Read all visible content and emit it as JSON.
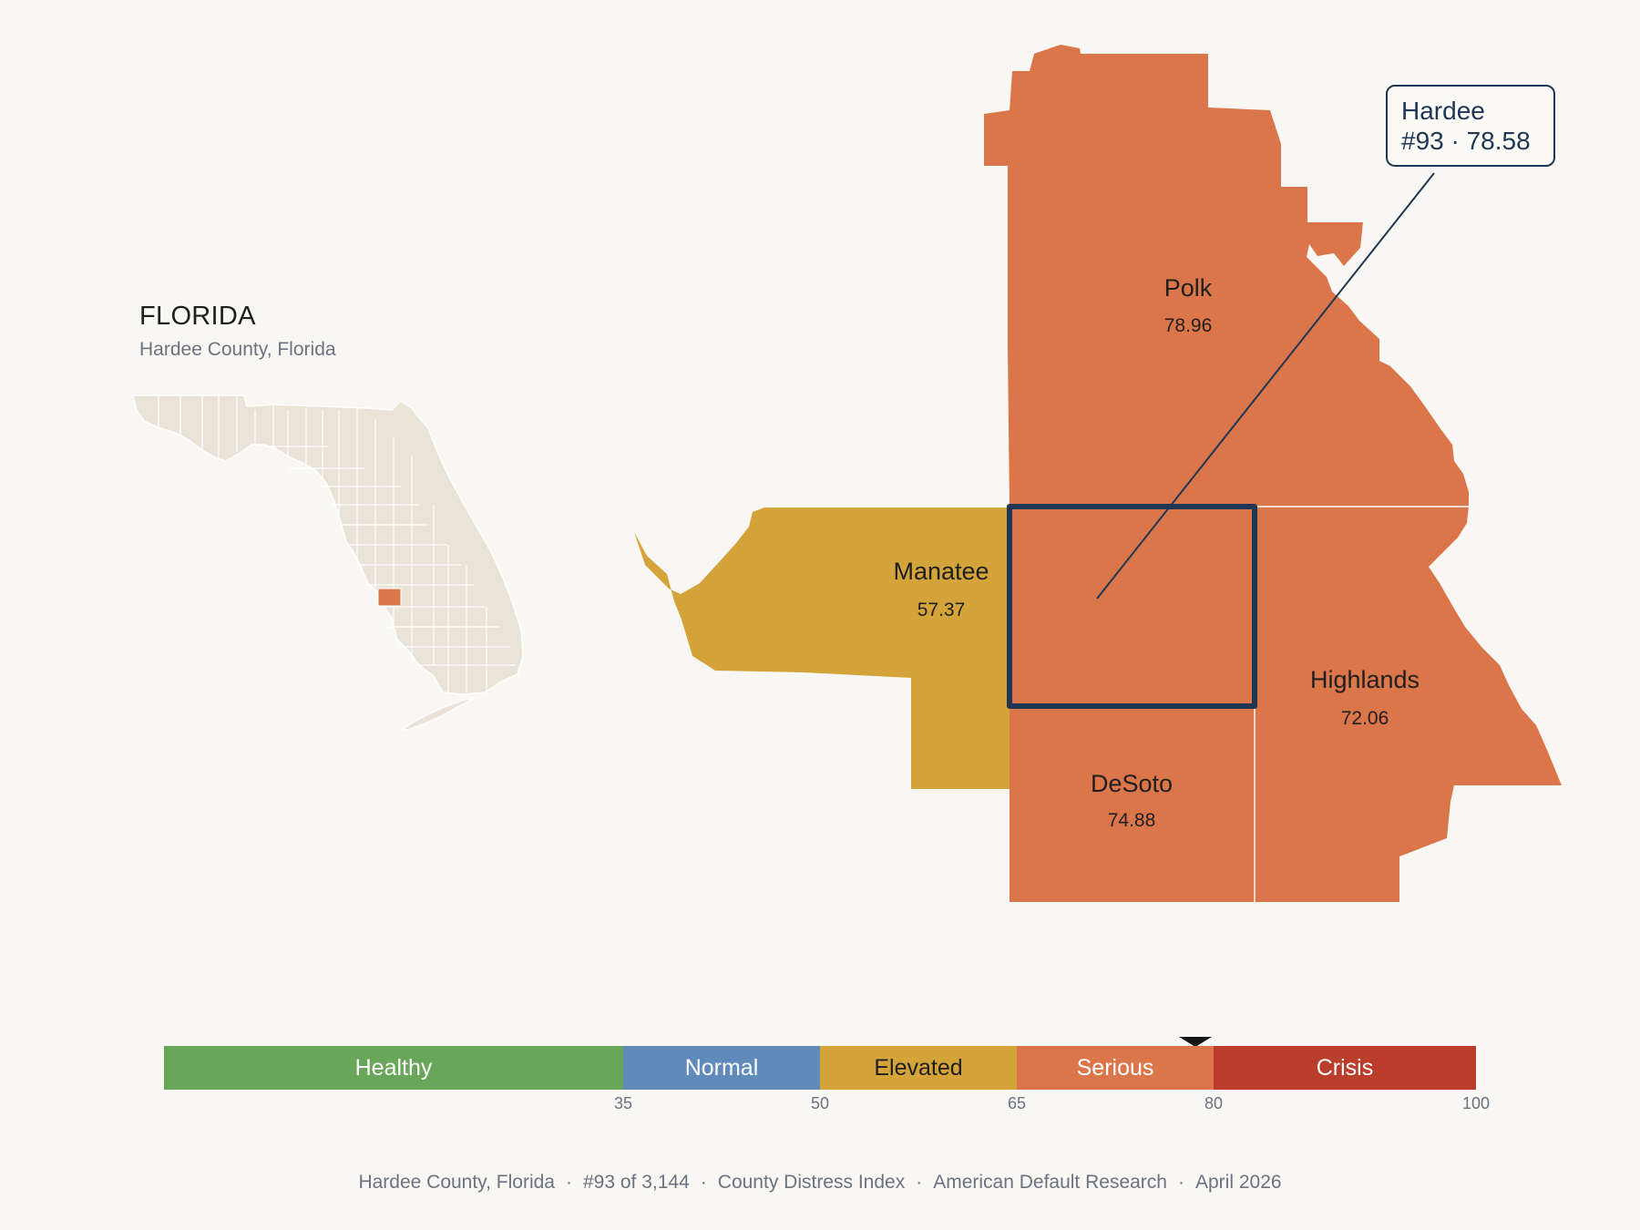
{
  "inset": {
    "title": "FLORIDA",
    "subtitle": "Hardee County, Florida",
    "highlight_color": "#db764a",
    "base_color": "#e9e3d8"
  },
  "counties": [
    {
      "name": "Polk",
      "score": "78.96",
      "tier": "Serious",
      "color": "#db764a"
    },
    {
      "name": "Manatee",
      "score": "57.37",
      "tier": "Elevated",
      "color": "#d4a43b"
    },
    {
      "name": "Highlands",
      "score": "72.06",
      "tier": "Serious",
      "color": "#db764a"
    },
    {
      "name": "DeSoto",
      "score": "74.88",
      "tier": "Serious",
      "color": "#db764a"
    },
    {
      "name": "Hardee",
      "score": "78.58",
      "tier": "Serious",
      "color": "#db764a",
      "selected": true
    }
  ],
  "callout": {
    "line1": "Hardee",
    "line2": "#93 · 78.58"
  },
  "legend": {
    "segments": [
      {
        "label": "Healthy",
        "from": 0,
        "to": 35,
        "color": "#68a659",
        "text_color": "#ffffff"
      },
      {
        "label": "Normal",
        "from": 35,
        "to": 50,
        "color": "#5f8ab9",
        "text_color": "#ffffff"
      },
      {
        "label": "Elevated",
        "from": 50,
        "to": 65,
        "color": "#d4a43b",
        "text_color": "#1f1f1f"
      },
      {
        "label": "Serious",
        "from": 65,
        "to": 80,
        "color": "#db764a",
        "text_color": "#ffffff"
      },
      {
        "label": "Crisis",
        "from": 80,
        "to": 100,
        "color": "#bb3d2c",
        "text_color": "#ffffff"
      }
    ],
    "ticks": [
      "35",
      "50",
      "65",
      "80",
      "100"
    ],
    "marker_value": 78.58
  },
  "footer": {
    "county": "Hardee County, Florida",
    "rank": "#93 of 3,144",
    "index": "County Distress Index",
    "source": "American Default Research",
    "date": "April 2026"
  }
}
